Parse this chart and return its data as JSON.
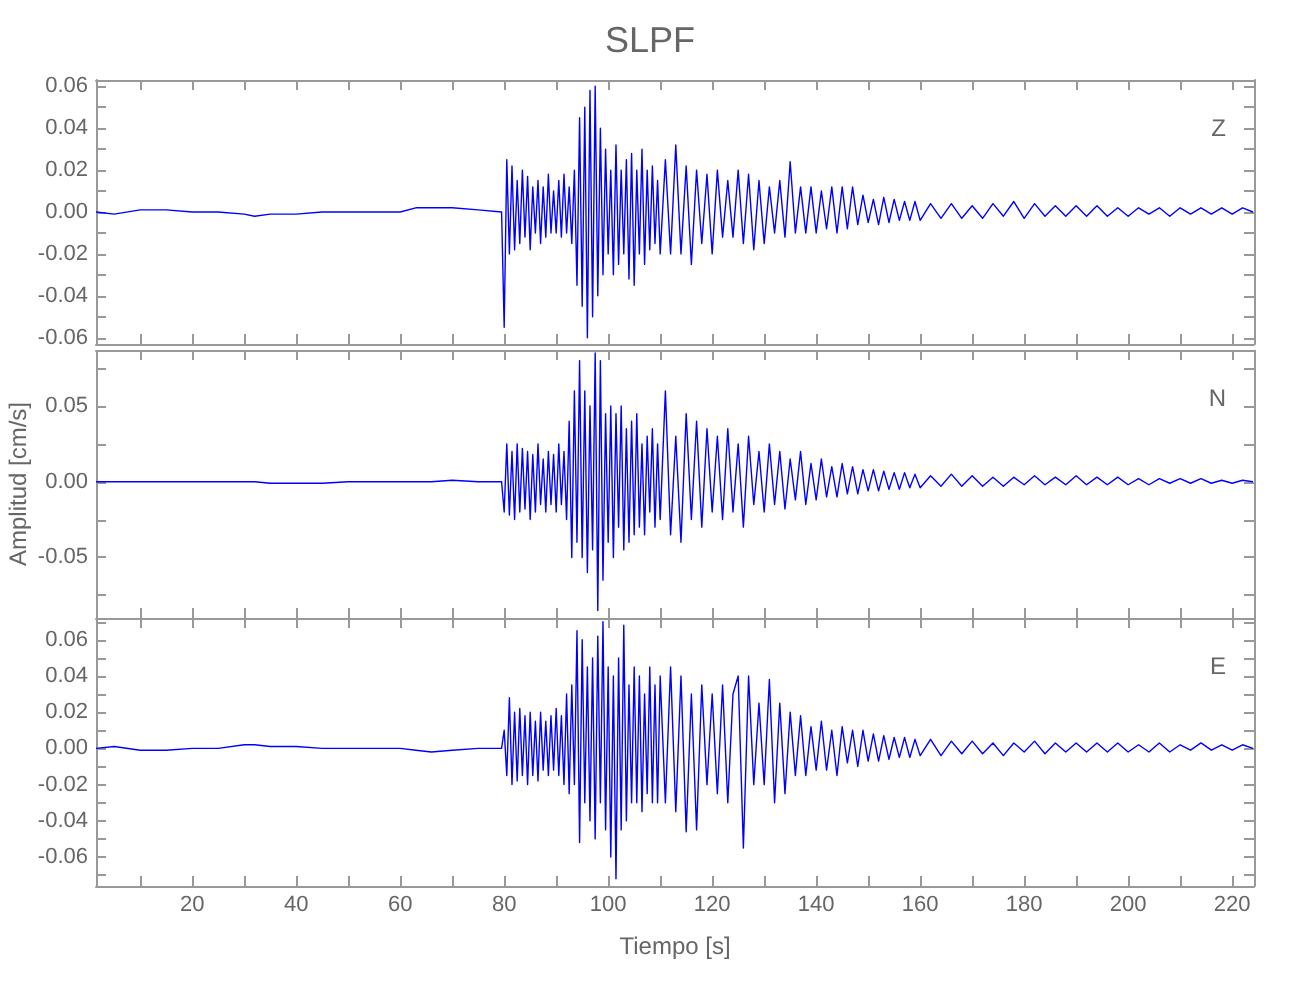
{
  "chart_data": [
    {
      "type": "line",
      "title": "SLPF",
      "annotations": [
        "Z"
      ],
      "tick_labels": "y",
      "grid": false,
      "xlim": [
        1.5,
        224.2
      ],
      "xticks": [
        {
          "value": 10,
          "label": null
        },
        20,
        {
          "value": 30,
          "label": null
        },
        40,
        {
          "value": 50,
          "label": null
        },
        60,
        {
          "value": 70,
          "label": null
        },
        80,
        {
          "value": 90,
          "label": null
        },
        100,
        {
          "value": 110,
          "label": null
        },
        120,
        {
          "value": 130,
          "label": null
        },
        140,
        {
          "value": 150,
          "label": null
        },
        160,
        {
          "value": 170,
          "label": null
        },
        180,
        {
          "value": 190,
          "label": null
        },
        200,
        {
          "value": 210,
          "label": null
        },
        220
      ],
      "ylim": [
        -0.063,
        0.063
      ],
      "yticks": [
        -0.06,
        {
          "value": -0.05,
          "label": null
        },
        -0.04,
        {
          "value": -0.03,
          "label": null
        },
        -0.02,
        {
          "value": -0.01,
          "label": null
        },
        {
          "value": 0,
          "label": "0.00"
        },
        {
          "value": 0.01,
          "label": null
        },
        0.02,
        {
          "value": 0.03,
          "label": null
        },
        0.04,
        {
          "value": 0.05,
          "label": null
        },
        0.06
      ],
      "x": [
        1.5,
        5,
        10,
        15,
        20,
        25,
        30,
        32,
        35,
        40,
        45,
        50,
        55,
        60,
        63,
        66,
        70,
        75,
        79.5,
        80,
        80.5,
        81,
        81.5,
        82,
        82.5,
        83,
        83.5,
        84,
        84.5,
        85,
        85.5,
        86,
        86.5,
        87,
        87.5,
        88,
        88.5,
        89,
        89.5,
        90,
        90.5,
        91,
        91.5,
        92,
        92.5,
        93,
        93.5,
        94,
        94.5,
        95,
        95.5,
        96,
        96.5,
        97,
        97.5,
        98,
        98.5,
        99,
        99.5,
        100,
        100.5,
        101,
        101.5,
        102,
        102.5,
        103,
        103.5,
        104,
        104.5,
        105,
        105.5,
        106,
        106.5,
        107,
        107.5,
        108,
        108.5,
        109,
        109.5,
        110,
        111,
        112,
        113,
        114,
        115,
        116,
        117,
        118,
        119,
        120,
        121,
        122,
        123,
        124,
        125,
        126,
        127,
        128,
        129,
        130,
        131,
        132,
        133,
        134,
        135,
        136,
        137,
        138,
        139,
        140,
        141,
        142,
        143,
        144,
        145,
        146,
        147,
        148,
        149,
        150,
        151,
        152,
        153,
        154,
        155,
        156,
        157,
        158,
        159,
        160,
        162,
        164,
        166,
        168,
        170,
        172,
        174,
        176,
        178,
        180,
        182,
        184,
        186,
        188,
        190,
        192,
        194,
        196,
        198,
        200,
        202,
        204,
        206,
        208,
        210,
        212,
        214,
        216,
        218,
        220,
        222,
        224
      ],
      "series": [
        {
          "color": "#0000ff",
          "values": [
            0,
            -0.001,
            0.001,
            0.001,
            0,
            0,
            -0.001,
            -0.002,
            -0.001,
            -0.001,
            0,
            0,
            0,
            0,
            0.002,
            0.002,
            0.002,
            0.001,
            0,
            -0.055,
            0.025,
            -0.02,
            0.022,
            -0.018,
            0.015,
            -0.015,
            0.02,
            -0.012,
            0.017,
            -0.018,
            0.012,
            -0.01,
            0.015,
            -0.015,
            0.012,
            -0.012,
            0.018,
            -0.01,
            0.01,
            -0.01,
            0.015,
            -0.012,
            0.018,
            -0.01,
            0.012,
            -0.015,
            0.02,
            -0.035,
            0.045,
            -0.045,
            0.05,
            -0.06,
            0.058,
            -0.05,
            0.06,
            -0.04,
            0.04,
            -0.03,
            0.03,
            -0.02,
            0.02,
            -0.03,
            0.032,
            -0.025,
            0.02,
            -0.02,
            0.025,
            -0.032,
            0.028,
            -0.035,
            0.02,
            -0.02,
            0.03,
            -0.025,
            0.02,
            -0.018,
            0.022,
            -0.015,
            0.015,
            -0.02,
            0.025,
            -0.02,
            0.032,
            -0.02,
            0.022,
            -0.025,
            0.02,
            -0.015,
            0.018,
            -0.02,
            0.02,
            -0.012,
            0.015,
            -0.012,
            0.02,
            -0.015,
            0.018,
            -0.018,
            0.015,
            -0.015,
            0.012,
            -0.01,
            0.015,
            -0.012,
            0.024,
            -0.01,
            0.012,
            -0.01,
            0.012,
            -0.01,
            0.01,
            -0.008,
            0.012,
            -0.01,
            0.012,
            -0.008,
            0.012,
            -0.006,
            0.008,
            -0.005,
            0.006,
            -0.006,
            0.007,
            -0.005,
            0.006,
            -0.004,
            0.005,
            -0.004,
            0.005,
            -0.004,
            0.004,
            -0.003,
            0.004,
            -0.003,
            0.003,
            -0.003,
            0.004,
            -0.002,
            0.005,
            -0.003,
            0.004,
            -0.002,
            0.003,
            -0.002,
            0.003,
            -0.002,
            0.003,
            -0.002,
            0.002,
            -0.002,
            0.002,
            -0.001,
            0.002,
            -0.002,
            0.002,
            -0.001,
            0.002,
            -0.001,
            0.002,
            -0.001,
            0.002,
            0
          ]
        }
      ]
    },
    {
      "type": "line",
      "ylabel": "Amplitud [cm/s]",
      "annotations": [
        "N"
      ],
      "tick_labels": "y",
      "grid": false,
      "xlim": [
        1.5,
        224.2
      ],
      "xticks": [
        {
          "value": 10,
          "label": null
        },
        20,
        {
          "value": 30,
          "label": null
        },
        40,
        {
          "value": 50,
          "label": null
        },
        60,
        {
          "value": 70,
          "label": null
        },
        80,
        {
          "value": 90,
          "label": null
        },
        100,
        {
          "value": 110,
          "label": null
        },
        120,
        {
          "value": 130,
          "label": null
        },
        140,
        {
          "value": 150,
          "label": null
        },
        160,
        {
          "value": 170,
          "label": null
        },
        180,
        {
          "value": 190,
          "label": null
        },
        200,
        {
          "value": 210,
          "label": null
        },
        220
      ],
      "ylim": [
        -0.09,
        0.087
      ],
      "yticks": [
        {
          "value": -0.075,
          "label": null
        },
        -0.05,
        {
          "value": -0.025,
          "label": null
        },
        {
          "value": 0,
          "label": "0.00"
        },
        {
          "value": 0.025,
          "label": null
        },
        0.05,
        {
          "value": 0.075,
          "label": null
        }
      ],
      "x": [
        1.5,
        5,
        10,
        15,
        20,
        25,
        30,
        32,
        35,
        40,
        45,
        50,
        55,
        60,
        63,
        66,
        70,
        75,
        79.5,
        80,
        80.5,
        81,
        81.5,
        82,
        82.5,
        83,
        83.5,
        84,
        84.5,
        85,
        85.5,
        86,
        86.5,
        87,
        87.5,
        88,
        88.5,
        89,
        89.5,
        90,
        90.5,
        91,
        91.5,
        92,
        92.5,
        93,
        93.5,
        94,
        94.5,
        95,
        95.5,
        96,
        96.5,
        97,
        97.5,
        98,
        98.5,
        99,
        99.5,
        100,
        100.5,
        101,
        101.5,
        102,
        102.5,
        103,
        103.5,
        104,
        104.5,
        105,
        105.5,
        106,
        106.5,
        107,
        107.5,
        108,
        108.5,
        109,
        109.5,
        110,
        111,
        112,
        113,
        114,
        115,
        116,
        117,
        118,
        119,
        120,
        121,
        122,
        123,
        124,
        125,
        126,
        127,
        128,
        129,
        130,
        131,
        132,
        133,
        134,
        135,
        136,
        137,
        138,
        139,
        140,
        141,
        142,
        143,
        144,
        145,
        146,
        147,
        148,
        149,
        150,
        151,
        152,
        153,
        154,
        155,
        156,
        157,
        158,
        159,
        160,
        162,
        164,
        166,
        168,
        170,
        172,
        174,
        176,
        178,
        180,
        182,
        184,
        186,
        188,
        190,
        192,
        194,
        196,
        198,
        200,
        202,
        204,
        206,
        208,
        210,
        212,
        214,
        216,
        218,
        220,
        222,
        224
      ],
      "series": [
        {
          "color": "#0000ff",
          "values": [
            0,
            0,
            0,
            0,
            0,
            0,
            0,
            0,
            -0.001,
            -0.001,
            -0.001,
            0,
            0,
            0,
            0,
            0,
            0.001,
            0,
            0,
            -0.02,
            0.025,
            -0.022,
            0.02,
            -0.025,
            0.025,
            -0.02,
            0.022,
            -0.018,
            0.02,
            -0.025,
            0.018,
            -0.02,
            0.025,
            -0.015,
            0.015,
            -0.02,
            0.02,
            -0.015,
            0.018,
            -0.02,
            0.025,
            -0.015,
            0.02,
            -0.025,
            0.04,
            -0.05,
            0.06,
            -0.04,
            0.08,
            -0.05,
            0.06,
            -0.06,
            0.05,
            -0.045,
            0.085,
            -0.085,
            0.08,
            -0.065,
            0.045,
            -0.04,
            0.05,
            -0.05,
            0.045,
            -0.03,
            0.05,
            -0.045,
            0.035,
            -0.04,
            0.04,
            -0.035,
            0.045,
            -0.03,
            0.025,
            -0.035,
            0.03,
            -0.02,
            0.035,
            -0.03,
            0.025,
            -0.025,
            0.06,
            -0.035,
            0.03,
            -0.04,
            0.045,
            -0.025,
            0.04,
            -0.03,
            0.035,
            -0.02,
            0.03,
            -0.025,
            0.035,
            -0.02,
            0.025,
            -0.03,
            0.03,
            -0.015,
            0.02,
            -0.02,
            0.025,
            -0.015,
            0.02,
            -0.018,
            0.015,
            -0.012,
            0.02,
            -0.015,
            0.012,
            -0.012,
            0.015,
            -0.01,
            0.01,
            -0.01,
            0.012,
            -0.008,
            0.01,
            -0.008,
            0.008,
            -0.006,
            0.008,
            -0.006,
            0.007,
            -0.005,
            0.006,
            -0.005,
            0.006,
            -0.004,
            0.005,
            -0.004,
            0.004,
            -0.003,
            0.005,
            -0.003,
            0.004,
            -0.003,
            0.003,
            -0.003,
            0.003,
            -0.002,
            0.004,
            -0.002,
            0.003,
            -0.002,
            0.004,
            -0.002,
            0.003,
            -0.002,
            0.003,
            -0.002,
            0.002,
            -0.002,
            0.002,
            -0.001,
            0.002,
            -0.001,
            0.002,
            -0.001,
            0.001,
            -0.001,
            0.001,
            0
          ]
        }
      ]
    },
    {
      "type": "line",
      "xlabel": "Tiempo [s]",
      "annotations": [
        "E"
      ],
      "grid": false,
      "xlim": [
        1.5,
        224.2
      ],
      "xticks": [
        {
          "value": 10,
          "label": null
        },
        20,
        {
          "value": 30,
          "label": null
        },
        40,
        {
          "value": 50,
          "label": null
        },
        60,
        {
          "value": 70,
          "label": null
        },
        80,
        {
          "value": 90,
          "label": null
        },
        100,
        {
          "value": 110,
          "label": null
        },
        120,
        {
          "value": 130,
          "label": null
        },
        140,
        {
          "value": 150,
          "label": null
        },
        160,
        {
          "value": 170,
          "label": null
        },
        180,
        {
          "value": 190,
          "label": null
        },
        200,
        {
          "value": 210,
          "label": null
        },
        220
      ],
      "ylim": [
        -0.076,
        0.072
      ],
      "yticks": [
        {
          "value": -0.07,
          "label": null
        },
        -0.06,
        {
          "value": -0.05,
          "label": null
        },
        -0.04,
        {
          "value": -0.03,
          "label": null
        },
        -0.02,
        {
          "value": -0.01,
          "label": null
        },
        {
          "value": 0,
          "label": "0.00"
        },
        {
          "value": 0.01,
          "label": null
        },
        0.02,
        {
          "value": 0.03,
          "label": null
        },
        0.04,
        {
          "value": 0.05,
          "label": null
        },
        0.06,
        {
          "value": 0.07,
          "label": null
        }
      ],
      "x": [
        1.5,
        5,
        10,
        15,
        20,
        25,
        30,
        32,
        35,
        40,
        45,
        50,
        55,
        60,
        63,
        66,
        70,
        75,
        79.5,
        80,
        80.5,
        81,
        81.5,
        82,
        82.5,
        83,
        83.5,
        84,
        84.5,
        85,
        85.5,
        86,
        86.5,
        87,
        87.5,
        88,
        88.5,
        89,
        89.5,
        90,
        90.5,
        91,
        91.5,
        92,
        92.5,
        93,
        93.5,
        94,
        94.5,
        95,
        95.5,
        96,
        96.5,
        97,
        97.5,
        98,
        98.5,
        99,
        99.5,
        100,
        100.5,
        101,
        101.5,
        102,
        102.5,
        103,
        103.5,
        104,
        104.5,
        105,
        105.5,
        106,
        106.5,
        107,
        107.5,
        108,
        108.5,
        109,
        109.5,
        110,
        111,
        112,
        113,
        114,
        115,
        116,
        117,
        118,
        119,
        120,
        121,
        122,
        123,
        124,
        125,
        126,
        127,
        128,
        129,
        130,
        131,
        132,
        133,
        134,
        135,
        136,
        137,
        138,
        139,
        140,
        141,
        142,
        143,
        144,
        145,
        146,
        147,
        148,
        149,
        150,
        151,
        152,
        153,
        154,
        155,
        156,
        157,
        158,
        159,
        160,
        162,
        164,
        166,
        168,
        170,
        172,
        174,
        176,
        178,
        180,
        182,
        184,
        186,
        188,
        190,
        192,
        194,
        196,
        198,
        200,
        202,
        204,
        206,
        208,
        210,
        212,
        214,
        216,
        218,
        220,
        222,
        224
      ],
      "series": [
        {
          "color": "#0000ff",
          "values": [
            0,
            0.001,
            -0.001,
            -0.001,
            0,
            0,
            0.002,
            0.002,
            0.001,
            0.001,
            0,
            0,
            0,
            0,
            -0.001,
            -0.002,
            -0.001,
            0,
            0,
            0.01,
            -0.015,
            0.028,
            -0.02,
            0.02,
            -0.018,
            0.022,
            -0.015,
            0.018,
            -0.02,
            0.02,
            -0.015,
            0.015,
            -0.018,
            0.02,
            -0.012,
            0.015,
            -0.015,
            0.018,
            -0.012,
            0.022,
            -0.015,
            0.018,
            -0.02,
            0.03,
            -0.025,
            0.035,
            -0.02,
            0.065,
            -0.052,
            0.06,
            -0.03,
            0.045,
            -0.04,
            0.05,
            -0.05,
            0.062,
            -0.03,
            0.07,
            -0.045,
            0.045,
            -0.06,
            0.04,
            -0.072,
            0.05,
            -0.045,
            0.068,
            -0.04,
            0.035,
            -0.03,
            0.045,
            -0.03,
            0.04,
            -0.035,
            0.03,
            -0.025,
            0.045,
            -0.03,
            0.035,
            -0.03,
            0.04,
            -0.03,
            0.045,
            -0.035,
            0.04,
            -0.046,
            0.03,
            -0.045,
            0.035,
            -0.02,
            0.03,
            -0.025,
            0.035,
            -0.03,
            0.03,
            0.04,
            -0.055,
            0.04,
            -0.02,
            0.025,
            -0.02,
            0.038,
            -0.03,
            0.025,
            -0.025,
            0.02,
            -0.015,
            0.018,
            -0.015,
            0.012,
            -0.012,
            0.015,
            -0.012,
            0.01,
            -0.015,
            0.012,
            -0.008,
            0.01,
            -0.01,
            0.01,
            -0.007,
            0.008,
            -0.007,
            0.007,
            -0.006,
            0.006,
            -0.005,
            0.006,
            -0.005,
            0.005,
            -0.004,
            0.005,
            -0.004,
            0.004,
            -0.003,
            0.004,
            -0.003,
            0.003,
            -0.004,
            0.003,
            -0.002,
            0.004,
            -0.003,
            0.003,
            -0.002,
            0.003,
            -0.002,
            0.003,
            -0.002,
            0.003,
            -0.002,
            0.002,
            -0.002,
            0.003,
            -0.002,
            0.002,
            -0.001,
            0.003,
            -0.001,
            0.002,
            -0.001,
            0.002,
            0
          ]
        }
      ]
    }
  ]
}
